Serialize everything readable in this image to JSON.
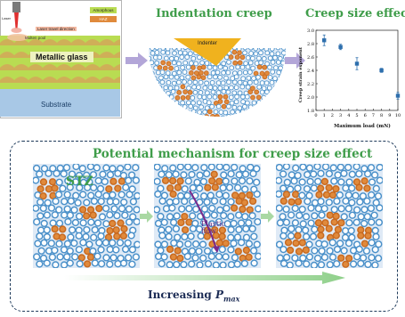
{
  "panel1": {
    "laser_label": "Laser",
    "legend_amorphous": "Amorphous",
    "legend_haz": "HAZ",
    "laser_direction": "Laser travel direction",
    "molten_pool": "Molten pool",
    "metallic_glass": "Metallic glass",
    "substrate": "Substrate"
  },
  "panel2": {
    "title": "Indentation creep",
    "indenter": "Indenter"
  },
  "panel3": {
    "title": "Creep size effect",
    "chart_data": {
      "type": "scatter",
      "xlabel": "Maximum load (mN)",
      "ylabel": "Creep strain exponent",
      "xlim": [
        0,
        10
      ],
      "ylim": [
        1.8,
        3.0
      ],
      "xticks": [
        "0",
        "1",
        "2",
        "3",
        "4",
        "5",
        "6",
        "7",
        "8",
        "9",
        "10"
      ],
      "yticks": [
        "1.8",
        "2.0",
        "2.2",
        "2.4",
        "2.6",
        "2.8",
        "3.0"
      ],
      "series": [
        {
          "x": [
            1,
            3,
            5,
            8,
            10
          ],
          "y": [
            2.85,
            2.75,
            2.5,
            2.4,
            2.02
          ],
          "err": [
            0.08,
            0.04,
            0.09,
            0.03,
            0.05
          ]
        }
      ]
    }
  },
  "mechanism": {
    "title": "Potential mechanism for creep size effect",
    "stz_label": "STZ",
    "plastic_flow_label_1": "Plastic",
    "plastic_flow_label_2": "flow",
    "increasing_label": "Increasing",
    "pmax_symbol": "P",
    "pmax_sub": "max"
  },
  "colors": {
    "green_title": "#3f9d4a",
    "blue_atom": "#4a90c9",
    "orange_atom": "#e08a3c",
    "arrow_purple": "#b3a6d8",
    "arrow_green": "#a9d8a3",
    "chart_blue": "#2e6fad"
  }
}
